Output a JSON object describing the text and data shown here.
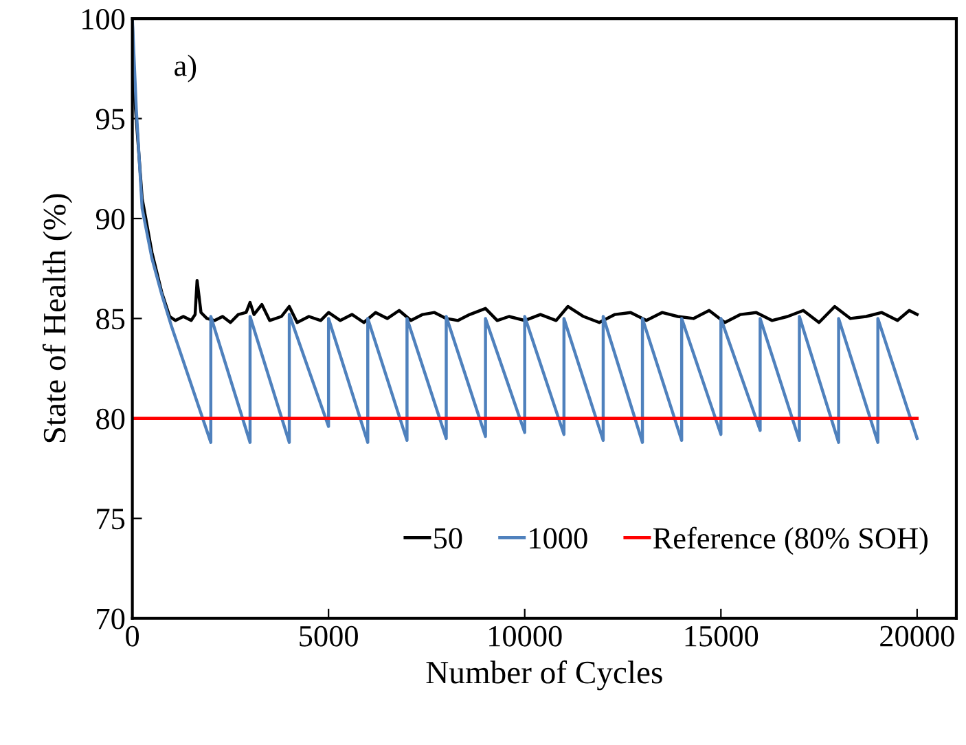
{
  "chart_data": {
    "type": "line",
    "xlabel": "Number of Cycles",
    "ylabel": "State of Health (%)",
    "xlim": [
      0,
      21000
    ],
    "xticks": [
      0,
      5000,
      10000,
      15000,
      20000
    ],
    "ylim": [
      70,
      100
    ],
    "yticks": [
      70,
      75,
      80,
      85,
      90,
      95,
      100
    ],
    "grid": false,
    "legend": "bottom right",
    "marker": "none",
    "line_style": "solid",
    "annotations": [
      "a)"
    ],
    "ref_lines": [
      {
        "axis": "y",
        "value": 80,
        "label": "Reference (80% SOH)",
        "color": "#ff0000"
      }
    ],
    "series": [
      {
        "name": "50",
        "color": "#000000",
        "x": [
          0,
          30,
          100,
          250,
          500,
          750,
          950,
          1100,
          1300,
          1500,
          1600,
          1650,
          1750,
          1900,
          2100,
          2300,
          2500,
          2700,
          2900,
          3000,
          3100,
          3300,
          3500,
          3800,
          4000,
          4200,
          4500,
          4800,
          5000,
          5300,
          5600,
          5900,
          6200,
          6500,
          6800,
          7100,
          7400,
          7700,
          8000,
          8300,
          8600,
          9000,
          9300,
          9600,
          10000,
          10400,
          10800,
          11100,
          11500,
          11900,
          12300,
          12700,
          13100,
          13500,
          13900,
          14300,
          14700,
          15100,
          15500,
          15900,
          16300,
          16700,
          17100,
          17500,
          17900,
          18300,
          18700,
          19100,
          19500,
          19800,
          20000
        ],
        "values": [
          100,
          96.8,
          95,
          91,
          88.3,
          86.3,
          85.1,
          84.9,
          85.1,
          84.9,
          85.2,
          86.9,
          85.3,
          85,
          84.9,
          85.1,
          84.8,
          85.2,
          85.3,
          85.8,
          85.2,
          85.7,
          84.9,
          85.1,
          85.6,
          84.8,
          85.1,
          84.9,
          85.3,
          84.9,
          85.2,
          84.8,
          85.3,
          85,
          85.4,
          84.9,
          85.2,
          85.3,
          85,
          84.9,
          85.2,
          85.5,
          84.9,
          85.1,
          84.9,
          85.2,
          84.9,
          85.6,
          85.1,
          84.8,
          85.2,
          85.3,
          84.9,
          85.3,
          85.1,
          85,
          85.4,
          84.8,
          85.2,
          85.3,
          84.9,
          85.1,
          85.4,
          84.8,
          85.6,
          85,
          85.1,
          85.3,
          84.9,
          85.4,
          85.2
        ]
      },
      {
        "name": "1000",
        "color": "#4f81bd",
        "x": [
          0,
          100,
          250,
          500,
          750,
          1000,
          2000,
          2000,
          3000,
          3000,
          4000,
          4000,
          5000,
          5000,
          6000,
          6000,
          7000,
          7000,
          8000,
          8000,
          9000,
          9000,
          10000,
          10000,
          11000,
          11000,
          12000,
          12000,
          13000,
          13000,
          14000,
          14000,
          15000,
          15000,
          16000,
          16000,
          17000,
          17000,
          18000,
          18000,
          19000,
          19000,
          20000
        ],
        "values": [
          100,
          95.5,
          90.5,
          88,
          86.2,
          84.6,
          78.8,
          85.1,
          78.8,
          85.1,
          78.8,
          85.2,
          79.6,
          85,
          78.8,
          85,
          78.9,
          85,
          79,
          85.1,
          79.1,
          85,
          79.3,
          85.1,
          79.2,
          85,
          78.9,
          85.1,
          78.8,
          85,
          78.9,
          85,
          79.2,
          85,
          79.4,
          85,
          78.9,
          85.1,
          78.8,
          85,
          78.8,
          85,
          79
        ]
      }
    ]
  }
}
